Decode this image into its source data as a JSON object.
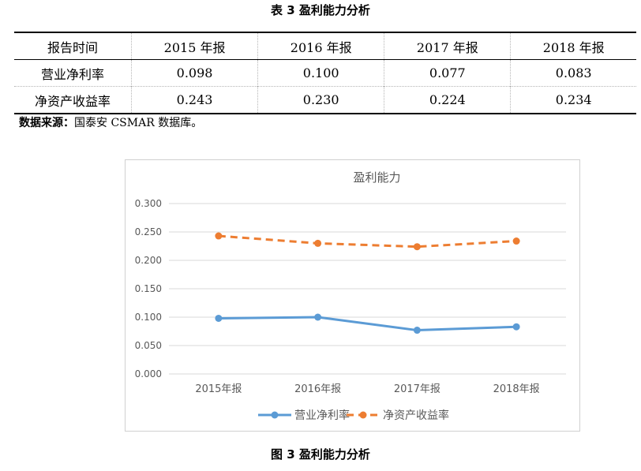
{
  "table": {
    "caption": "表 3  盈利能力分析",
    "header": [
      "报告时间",
      "2015 年报",
      "2016 年报",
      "2017 年报",
      "2018 年报"
    ],
    "rows": [
      {
        "label": "营业净利率",
        "values": [
          "0.098",
          "0.100",
          "0.077",
          "0.083"
        ]
      },
      {
        "label": "净资产收益率",
        "values": [
          "0.243",
          "0.230",
          "0.224",
          "0.234"
        ]
      }
    ]
  },
  "source_note": {
    "label": "数据来源：",
    "text": "国泰安 CSMAR 数据库。"
  },
  "figure_caption": "图 3  盈利能力分析",
  "chart_data": {
    "type": "line",
    "title": "盈利能力",
    "categories": [
      "2015年报",
      "2016年报",
      "2017年报",
      "2018年报"
    ],
    "series": [
      {
        "name": "营业净利率",
        "values": [
          0.098,
          0.1,
          0.077,
          0.083
        ],
        "color": "#5b9bd5",
        "dash": false
      },
      {
        "name": "净资产收益率",
        "values": [
          0.243,
          0.23,
          0.224,
          0.234
        ],
        "color": "#ed7d31",
        "dash": true
      }
    ],
    "ylim": [
      0,
      0.3
    ],
    "yticks": [
      "0.000",
      "0.050",
      "0.100",
      "0.150",
      "0.200",
      "0.250",
      "0.300"
    ],
    "grid": true,
    "legend": "bottom"
  }
}
